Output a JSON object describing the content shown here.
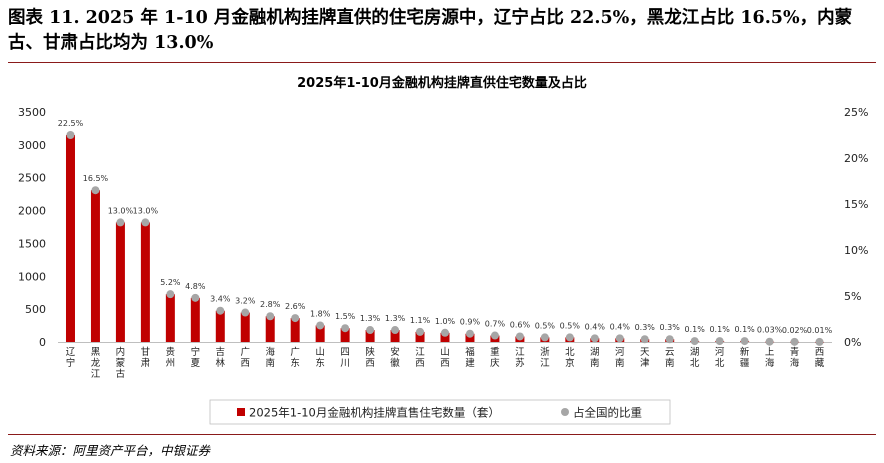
{
  "report_title": "图表 11. 2025 年 1-10 月金融机构挂牌直供的住宅房源中，辽宁占比 22.5%，黑龙江占比 16.5%，内蒙古、甘肃占比均为 13.0%",
  "source": "资料来源：阿里资产平台，中银证券",
  "colors": {
    "bar": "#c00000",
    "dot": "#a6a6a6",
    "rule": "#8a1a1a"
  },
  "chart_data": {
    "type": "bar",
    "title": "2025年1-10月金融机构挂牌直供住宅数量及占比",
    "categories": [
      "辽宁",
      "黑龙江",
      "内蒙古",
      "甘肃",
      "贵州",
      "宁夏",
      "吉林",
      "广西",
      "海南",
      "广东",
      "山东",
      "四川",
      "陕西",
      "安徽",
      "江西",
      "山西",
      "福建",
      "重庆",
      "江苏",
      "浙江",
      "北京",
      "湖南",
      "河南",
      "天津",
      "云南",
      "湖北",
      "河北",
      "新疆",
      "上海",
      "青海",
      "西藏"
    ],
    "series": [
      {
        "name": "2025年1-10月金融机构挂牌直售住宅数量（套）",
        "type": "bar",
        "axis": "left",
        "values": [
          3150,
          2310,
          1820,
          1820,
          728,
          672,
          476,
          448,
          392,
          364,
          252,
          210,
          182,
          182,
          154,
          140,
          126,
          98,
          84,
          70,
          70,
          56,
          56,
          42,
          42,
          14,
          14,
          14,
          4,
          3,
          1
        ]
      },
      {
        "name": "占全国的比重",
        "type": "scatter",
        "axis": "right",
        "values": [
          22.5,
          16.5,
          13.0,
          13.0,
          5.2,
          4.8,
          3.4,
          3.2,
          2.8,
          2.6,
          1.8,
          1.5,
          1.3,
          1.3,
          1.1,
          1.0,
          0.9,
          0.7,
          0.6,
          0.5,
          0.5,
          0.4,
          0.4,
          0.3,
          0.3,
          0.1,
          0.1,
          0.1,
          0.03,
          0.02,
          0.01
        ],
        "labels": [
          "22.5%",
          "16.5%",
          "13.0%",
          "13.0%",
          "5.2%",
          "4.8%",
          "3.4%",
          "3.2%",
          "2.8%",
          "2.6%",
          "1.8%",
          "1.5%",
          "1.3%",
          "1.3%",
          "1.1%",
          "1.0%",
          "0.9%",
          "0.7%",
          "0.6%",
          "0.5%",
          "0.5%",
          "0.4%",
          "0.4%",
          "0.3%",
          "0.3%",
          "0.1%",
          "0.1%",
          "0.1%",
          "0.03%",
          "0.02%",
          "0.01%"
        ]
      }
    ],
    "ylim": [
      0,
      3500
    ],
    "yticks": [
      "0",
      "500",
      "1000",
      "1500",
      "2000",
      "2500",
      "3000",
      "3500"
    ],
    "y2lim": [
      0,
      25
    ],
    "y2ticks": [
      "0%",
      "5%",
      "10%",
      "15%",
      "20%",
      "25%"
    ],
    "grid": false,
    "legend": "bottom"
  }
}
